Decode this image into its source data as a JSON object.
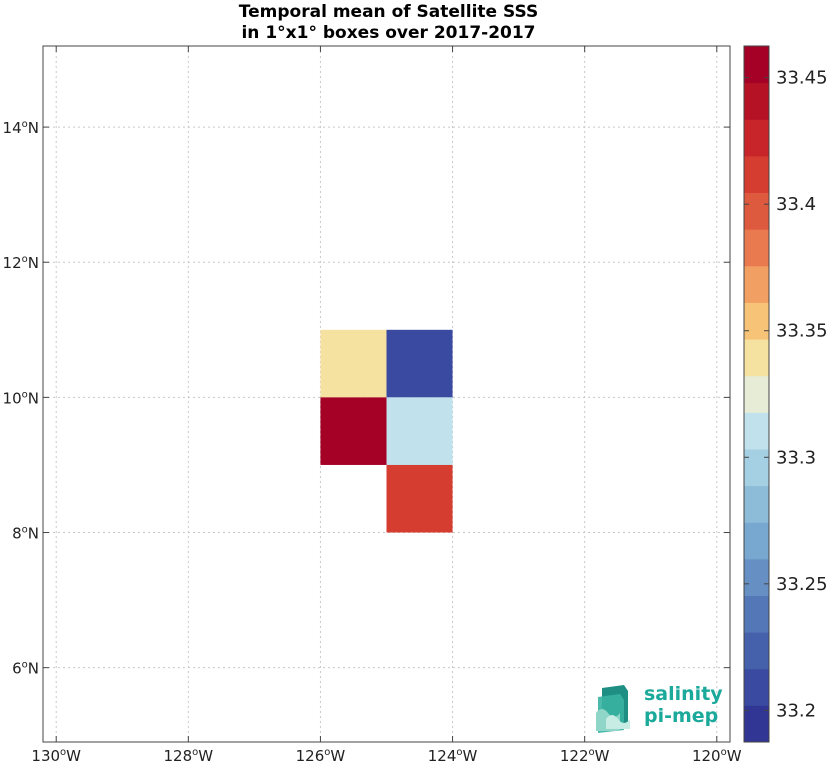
{
  "chart_data": {
    "type": "heatmap",
    "title_line1": "Temporal mean of Satellite SSS",
    "title_line2": "in 1°x1° boxes over 2017-2017",
    "xlim": [
      -130.2,
      -119.8
    ],
    "ylim": [
      4.9,
      15.2
    ],
    "x_ticks": [
      {
        "value": -130,
        "deg": "130",
        "hemi": "W"
      },
      {
        "value": -128,
        "deg": "128",
        "hemi": "W"
      },
      {
        "value": -126,
        "deg": "126",
        "hemi": "W"
      },
      {
        "value": -124,
        "deg": "124",
        "hemi": "W"
      },
      {
        "value": -122,
        "deg": "122",
        "hemi": "W"
      },
      {
        "value": -120,
        "deg": "120",
        "hemi": "W"
      }
    ],
    "y_ticks": [
      {
        "value": 6,
        "deg": "6",
        "hemi": "N"
      },
      {
        "value": 8,
        "deg": "8",
        "hemi": "N"
      },
      {
        "value": 10,
        "deg": "10",
        "hemi": "N"
      },
      {
        "value": 12,
        "deg": "12",
        "hemi": "N"
      },
      {
        "value": 14,
        "deg": "14",
        "hemi": "N"
      }
    ],
    "grid": true,
    "cells": [
      {
        "lon_min": -126,
        "lon_max": -125,
        "lat_min": 10,
        "lat_max": 11,
        "value": 33.335
      },
      {
        "lon_min": -125,
        "lon_max": -124,
        "lat_min": 10,
        "lat_max": 11,
        "value": 33.205
      },
      {
        "lon_min": -126,
        "lon_max": -125,
        "lat_min": 9,
        "lat_max": 10,
        "value": 33.455
      },
      {
        "lon_min": -125,
        "lon_max": -124,
        "lat_min": 9,
        "lat_max": 10,
        "value": 33.315
      },
      {
        "lon_min": -125,
        "lon_max": -124,
        "lat_min": 8,
        "lat_max": 9,
        "value": 33.415
      }
    ],
    "colorbar": {
      "min": 33.1875,
      "max": 33.4625,
      "colors": [
        "#313695",
        "#3a4aa0",
        "#4661ac",
        "#5477b7",
        "#6690c3",
        "#78a8cf",
        "#8dbcd9",
        "#a5d0e3",
        "#c1e2ec",
        "#e6ecd6",
        "#f6e2a0",
        "#f7c377",
        "#f29f63",
        "#e9794f",
        "#de5a3e",
        "#d43d30",
        "#c72529",
        "#b51225",
        "#a50026"
      ],
      "ticks": [
        {
          "value": 33.2,
          "label": "33.2"
        },
        {
          "value": 33.25,
          "label": "33.25"
        },
        {
          "value": 33.3,
          "label": "33.3"
        },
        {
          "value": 33.35,
          "label": "33.35"
        },
        {
          "value": 33.4,
          "label": "33.4"
        },
        {
          "value": 33.45,
          "label": "33.45"
        }
      ]
    }
  },
  "logo": {
    "line1": "salinity",
    "line2": "pi-mep",
    "color": "#1aa99a"
  }
}
